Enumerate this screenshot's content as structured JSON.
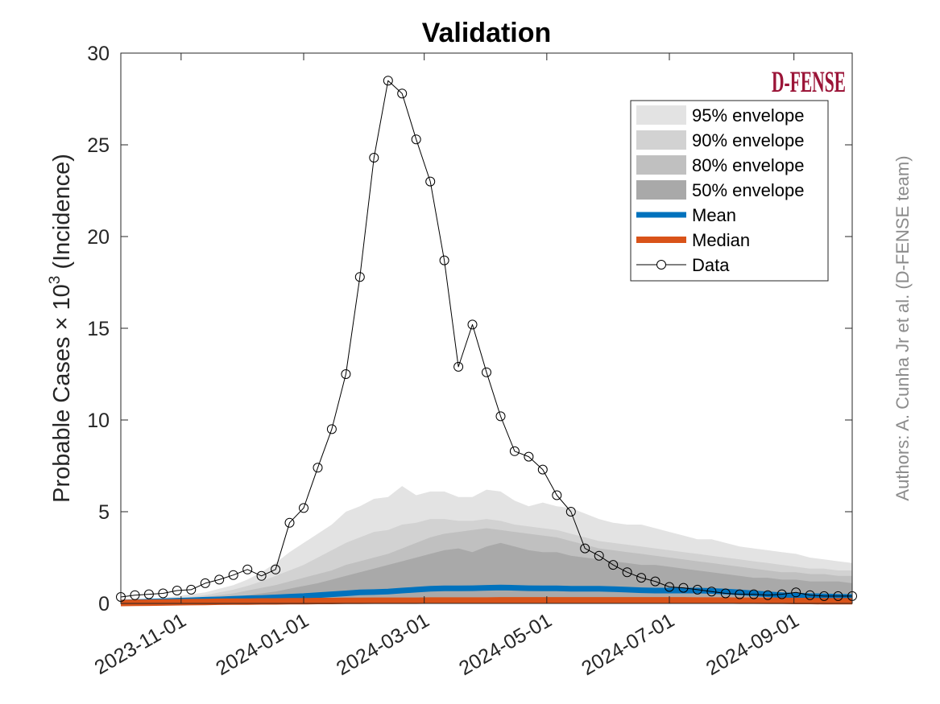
{
  "chart_data": {
    "type": "area",
    "title": "Validation",
    "ylabel_main": "Probable Cases ",
    "ylabel_times": "×",
    "ylabel_base": " 10",
    "ylabel_exp": "3",
    "ylabel_tail": " (Incidence)",
    "xlabel": "",
    "ylim": [
      0,
      30
    ],
    "yticks": [
      "0",
      "5",
      "10",
      "15",
      "20",
      "25",
      "30"
    ],
    "xlim": [
      "2023-10-02",
      "2024-09-30"
    ],
    "xticks": [
      "2023-11-01",
      "2024-01-01",
      "2024-03-01",
      "2024-05-01",
      "2024-07-01",
      "2024-09-01"
    ],
    "dates": [
      "2023-10-02",
      "2023-10-09",
      "2023-10-16",
      "2023-10-23",
      "2023-10-30",
      "2023-11-06",
      "2023-11-13",
      "2023-11-20",
      "2023-11-27",
      "2023-12-04",
      "2023-12-11",
      "2023-12-18",
      "2023-12-25",
      "2024-01-01",
      "2024-01-08",
      "2024-01-15",
      "2024-01-22",
      "2024-01-29",
      "2024-02-05",
      "2024-02-12",
      "2024-02-19",
      "2024-02-26",
      "2024-03-04",
      "2024-03-11",
      "2024-03-18",
      "2024-03-25",
      "2024-04-01",
      "2024-04-08",
      "2024-04-15",
      "2024-04-22",
      "2024-04-29",
      "2024-05-06",
      "2024-05-13",
      "2024-05-20",
      "2024-05-27",
      "2024-06-03",
      "2024-06-10",
      "2024-06-17",
      "2024-06-24",
      "2024-07-01",
      "2024-07-08",
      "2024-07-15",
      "2024-07-22",
      "2024-07-29",
      "2024-08-05",
      "2024-08-12",
      "2024-08-19",
      "2024-08-26",
      "2024-09-02",
      "2024-09-09",
      "2024-09-16",
      "2024-09-23",
      "2024-09-30"
    ],
    "series": [
      {
        "name": "95% envelope",
        "color": "#e3e3e3",
        "kind": "band",
        "lower": [
          0,
          0,
          0,
          0,
          0,
          0,
          0,
          0,
          0,
          0,
          0,
          0,
          0,
          0,
          0,
          0,
          0,
          0,
          0,
          0,
          0,
          0,
          0,
          0,
          0,
          0,
          0,
          0,
          0,
          0,
          0,
          0,
          0,
          0,
          0,
          0,
          0,
          0,
          0,
          0,
          0,
          0,
          0,
          0,
          0,
          0,
          0,
          0,
          0,
          0,
          0,
          0,
          0
        ],
        "upper": [
          0.15,
          0.2,
          0.25,
          0.3,
          0.4,
          0.5,
          0.6,
          0.8,
          1.0,
          1.3,
          1.7,
          2.2,
          2.8,
          3.3,
          3.8,
          4.3,
          5.0,
          5.3,
          5.7,
          5.8,
          6.4,
          5.9,
          6.1,
          6.1,
          5.8,
          5.8,
          6.2,
          6.1,
          5.6,
          5.3,
          5.5,
          5.3,
          5.2,
          4.9,
          4.6,
          4.4,
          4.3,
          4.3,
          4.1,
          3.9,
          3.7,
          3.5,
          3.5,
          3.3,
          3.1,
          3.0,
          2.9,
          2.8,
          2.7,
          2.5,
          2.4,
          2.3,
          2.2
        ]
      },
      {
        "name": "90% envelope",
        "color": "#d2d2d2",
        "kind": "band",
        "lower": [
          0,
          0,
          0,
          0,
          0,
          0,
          0,
          0,
          0,
          0,
          0,
          0,
          0,
          0,
          0,
          0,
          0,
          0,
          0,
          0,
          0,
          0,
          0,
          0,
          0,
          0,
          0,
          0,
          0,
          0,
          0,
          0,
          0,
          0,
          0,
          0,
          0,
          0,
          0,
          0,
          0,
          0,
          0,
          0,
          0,
          0,
          0,
          0,
          0,
          0,
          0,
          0,
          0
        ],
        "upper": [
          0.1,
          0.15,
          0.2,
          0.25,
          0.3,
          0.35,
          0.45,
          0.6,
          0.75,
          0.95,
          1.2,
          1.5,
          1.8,
          2.1,
          2.5,
          2.9,
          3.3,
          3.6,
          3.9,
          4.0,
          4.3,
          4.4,
          4.6,
          4.6,
          4.5,
          4.5,
          4.6,
          4.5,
          4.3,
          4.2,
          4.1,
          4.0,
          3.8,
          3.6,
          3.4,
          3.3,
          3.2,
          3.1,
          3.0,
          2.9,
          2.8,
          2.7,
          2.6,
          2.5,
          2.4,
          2.3,
          2.2,
          2.1,
          2.0,
          1.9,
          1.9,
          1.8,
          1.8
        ]
      },
      {
        "name": "80% envelope",
        "color": "#c0c0c0",
        "kind": "band",
        "lower": [
          0,
          0,
          0,
          0,
          0,
          0,
          0,
          0,
          0,
          0,
          0,
          0,
          0,
          0,
          0,
          0,
          0,
          0,
          0,
          0,
          0,
          0,
          0,
          0,
          0,
          0,
          0,
          0,
          0,
          0,
          0,
          0,
          0,
          0,
          0,
          0,
          0,
          0,
          0,
          0,
          0,
          0,
          0,
          0,
          0,
          0,
          0,
          0,
          0,
          0,
          0,
          0,
          0
        ],
        "upper": [
          0.08,
          0.1,
          0.14,
          0.18,
          0.22,
          0.28,
          0.35,
          0.45,
          0.55,
          0.7,
          0.85,
          1.0,
          1.2,
          1.4,
          1.6,
          1.8,
          2.1,
          2.3,
          2.5,
          2.7,
          3.0,
          3.3,
          3.6,
          3.8,
          3.9,
          4.0,
          4.1,
          4.0,
          3.9,
          3.8,
          3.7,
          3.6,
          3.4,
          3.2,
          3.0,
          2.9,
          2.8,
          2.7,
          2.6,
          2.5,
          2.4,
          2.3,
          2.2,
          2.1,
          2.0,
          1.9,
          1.8,
          1.7,
          1.7,
          1.6,
          1.6,
          1.5,
          1.5
        ]
      },
      {
        "name": "50% envelope",
        "color": "#a9a9a9",
        "kind": "band",
        "lower": [
          0,
          0,
          0,
          0,
          0,
          0,
          0,
          0,
          0,
          0,
          0,
          0,
          0,
          0,
          0,
          0,
          0,
          0,
          0,
          0,
          0,
          0,
          0,
          0,
          0.05,
          0.05,
          0.05,
          0.05,
          0.05,
          0.05,
          0.05,
          0.05,
          0.05,
          0.05,
          0.05,
          0.05,
          0.05,
          0.05,
          0.05,
          0.05,
          0.05,
          0.05,
          0.05,
          0.05,
          0.05,
          0.05,
          0.05,
          0.05,
          0.05,
          0.05,
          0.05,
          0.05,
          0.05
        ],
        "upper": [
          0.05,
          0.07,
          0.1,
          0.12,
          0.15,
          0.18,
          0.22,
          0.28,
          0.35,
          0.45,
          0.55,
          0.65,
          0.8,
          0.95,
          1.1,
          1.3,
          1.5,
          1.7,
          1.9,
          2.1,
          2.3,
          2.5,
          2.7,
          2.9,
          3.0,
          2.8,
          3.1,
          3.3,
          3.1,
          2.9,
          2.8,
          2.8,
          2.6,
          2.5,
          2.4,
          2.3,
          2.2,
          2.1,
          2.1,
          2.0,
          1.9,
          1.8,
          1.7,
          1.6,
          1.5,
          1.4,
          1.4,
          1.3,
          1.3,
          1.2,
          1.2,
          1.2,
          1.1
        ]
      },
      {
        "name": "Mean",
        "color": "#0072bd",
        "kind": "line",
        "width": 7,
        "values": [
          0.05,
          0.07,
          0.1,
          0.12,
          0.15,
          0.17,
          0.2,
          0.22,
          0.25,
          0.28,
          0.3,
          0.33,
          0.37,
          0.4,
          0.45,
          0.5,
          0.55,
          0.6,
          0.62,
          0.65,
          0.7,
          0.75,
          0.8,
          0.82,
          0.82,
          0.83,
          0.85,
          0.87,
          0.85,
          0.83,
          0.82,
          0.82,
          0.8,
          0.8,
          0.8,
          0.78,
          0.75,
          0.72,
          0.7,
          0.7,
          0.7,
          0.7,
          0.68,
          0.65,
          0.6,
          0.55,
          0.5,
          0.45,
          0.42,
          0.4,
          0.38,
          0.36,
          0.35
        ]
      },
      {
        "name": "Median",
        "color": "#d95319",
        "kind": "line",
        "width": 8,
        "values": [
          0.02,
          0.03,
          0.04,
          0.05,
          0.06,
          0.07,
          0.08,
          0.09,
          0.1,
          0.1,
          0.11,
          0.11,
          0.12,
          0.12,
          0.13,
          0.13,
          0.14,
          0.14,
          0.15,
          0.15,
          0.15,
          0.15,
          0.16,
          0.16,
          0.16,
          0.16,
          0.16,
          0.17,
          0.17,
          0.17,
          0.17,
          0.17,
          0.17,
          0.17,
          0.17,
          0.17,
          0.17,
          0.17,
          0.17,
          0.17,
          0.17,
          0.16,
          0.16,
          0.16,
          0.15,
          0.15,
          0.14,
          0.14,
          0.13,
          0.13,
          0.12,
          0.12,
          0.12
        ]
      },
      {
        "name": "Data",
        "color": "#000000",
        "kind": "marker-line",
        "values": [
          0.35,
          0.45,
          0.5,
          0.55,
          0.7,
          0.75,
          1.1,
          1.3,
          1.55,
          1.85,
          1.5,
          1.85,
          4.4,
          5.2,
          7.4,
          9.5,
          12.5,
          17.8,
          24.3,
          28.5,
          27.8,
          25.3,
          23.0,
          18.7,
          12.9,
          15.2,
          12.6,
          10.2,
          8.3,
          8.0,
          7.3,
          5.9,
          5.0,
          3.0,
          2.6,
          2.1,
          1.7,
          1.4,
          1.2,
          0.9,
          0.85,
          0.75,
          0.65,
          0.55,
          0.5,
          0.5,
          0.45,
          0.5,
          0.6,
          0.45,
          0.4,
          0.4,
          0.4
        ]
      }
    ],
    "legend": {
      "placement": "top-right"
    }
  },
  "logo_text": "D-FENSE",
  "side_note": "Authors: A. Cunha Jr et al. (D-FENSE team)"
}
